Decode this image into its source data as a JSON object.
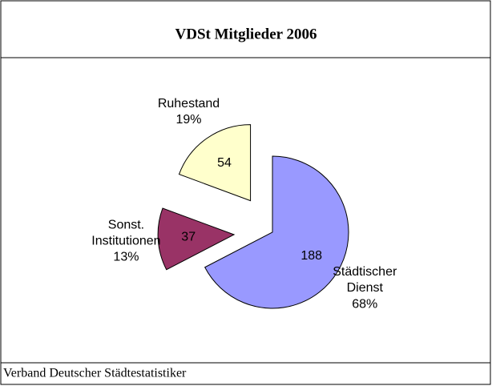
{
  "chart_data": {
    "type": "pie",
    "title": "VDSt Mitglieder 2006",
    "categories": [
      "Städtischer Dienst",
      "Sonst. Institutionen",
      "Ruhestand"
    ],
    "values": [
      188,
      37,
      54
    ],
    "percent_labels": [
      "68%",
      "13%",
      "19%"
    ],
    "colors": [
      "#9999ff",
      "#993366",
      "#ffffcc"
    ],
    "source": "Verband Deutscher Städtestatistiker"
  }
}
